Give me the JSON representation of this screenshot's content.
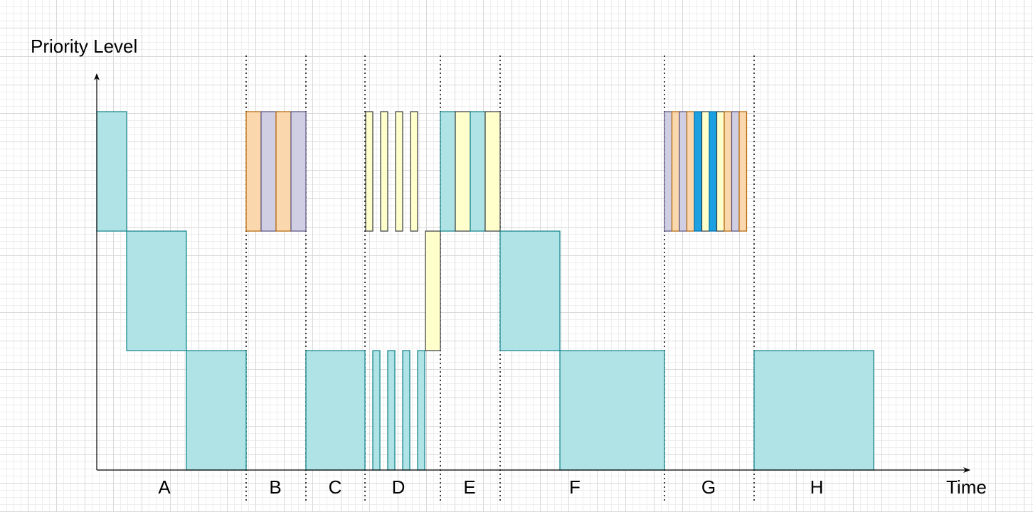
{
  "y_axis_label": "Priority Level",
  "x_axis_label": "Time",
  "colors": {
    "teal": "#b0e3e6",
    "teal_stroke": "#0e8088",
    "yellow": "#ffffcc",
    "yellow_stroke": "#36393d",
    "orange": "#fad7ac",
    "orange_stroke": "#b46504",
    "lavender": "#d0cee2",
    "lavender_stroke": "#56517e",
    "blue": "#1ba1e2",
    "blue_stroke": "#006eaf"
  },
  "segments": [
    "A",
    "B",
    "C",
    "D",
    "E",
    "F",
    "G",
    "H"
  ],
  "priority_levels": 3,
  "blocks": [
    {
      "segment": "A",
      "level": 3,
      "color": "teal"
    },
    {
      "segment": "A",
      "level": 2,
      "color": "teal"
    },
    {
      "segment": "A",
      "level": 1,
      "color": "teal"
    },
    {
      "segment": "B",
      "level": 3,
      "color": "orange"
    },
    {
      "segment": "B",
      "level": 3,
      "color": "lavender"
    },
    {
      "segment": "B",
      "level": 3,
      "color": "orange"
    },
    {
      "segment": "B",
      "level": 3,
      "color": "lavender"
    },
    {
      "segment": "C",
      "level": 1,
      "color": "teal"
    },
    {
      "segment": "D",
      "level": 3,
      "color": "yellow"
    },
    {
      "segment": "D",
      "level": 3,
      "color": "yellow"
    },
    {
      "segment": "D",
      "level": 3,
      "color": "yellow"
    },
    {
      "segment": "D",
      "level": 3,
      "color": "yellow"
    },
    {
      "segment": "D",
      "level": 1,
      "color": "teal"
    },
    {
      "segment": "D",
      "level": 1,
      "color": "teal"
    },
    {
      "segment": "D",
      "level": 1,
      "color": "teal"
    },
    {
      "segment": "D",
      "level": 1,
      "color": "teal"
    },
    {
      "segment": "D",
      "level": 2,
      "color": "yellow"
    },
    {
      "segment": "E",
      "level": 3,
      "color": "teal"
    },
    {
      "segment": "E",
      "level": 3,
      "color": "yellow"
    },
    {
      "segment": "E",
      "level": 3,
      "color": "teal"
    },
    {
      "segment": "E",
      "level": 3,
      "color": "yellow"
    },
    {
      "segment": "F",
      "level": 2,
      "color": "teal"
    },
    {
      "segment": "F",
      "level": 1,
      "color": "teal"
    },
    {
      "segment": "G",
      "level": 3,
      "color": "lavender"
    },
    {
      "segment": "G",
      "level": 3,
      "color": "orange"
    },
    {
      "segment": "G",
      "level": 3,
      "color": "lavender"
    },
    {
      "segment": "G",
      "level": 3,
      "color": "orange"
    },
    {
      "segment": "G",
      "level": 3,
      "color": "blue"
    },
    {
      "segment": "G",
      "level": 3,
      "color": "yellow"
    },
    {
      "segment": "G",
      "level": 3,
      "color": "blue"
    },
    {
      "segment": "G",
      "level": 3,
      "color": "yellow"
    },
    {
      "segment": "G",
      "level": 3,
      "color": "orange"
    },
    {
      "segment": "G",
      "level": 3,
      "color": "lavender"
    },
    {
      "segment": "G",
      "level": 3,
      "color": "orange"
    },
    {
      "segment": "H",
      "level": 1,
      "color": "teal"
    }
  ]
}
